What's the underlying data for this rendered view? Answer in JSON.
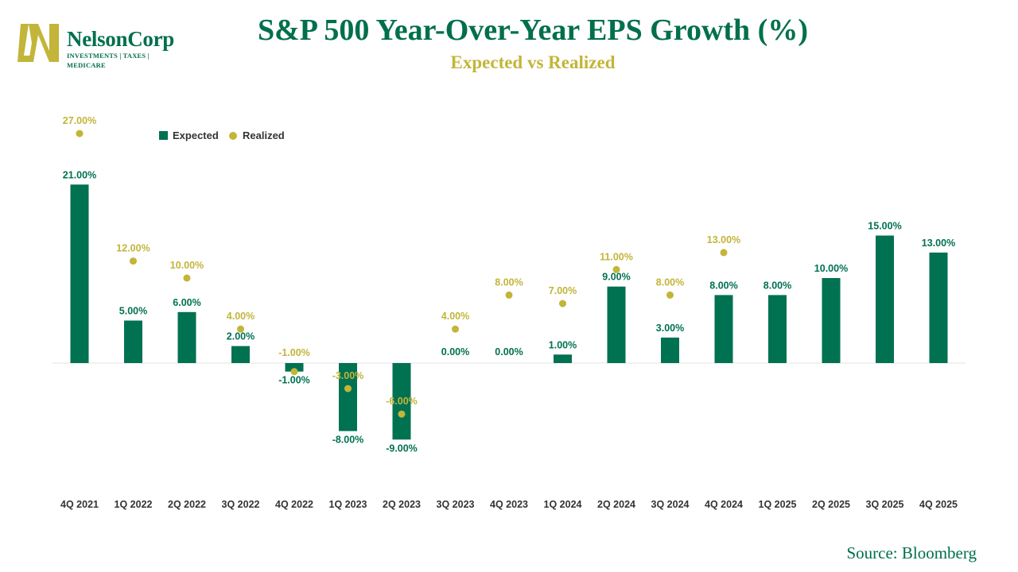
{
  "logo": {
    "name": "NelsonCorp",
    "tagline": "INVESTMENTS | TAXES | MEDICARE"
  },
  "header": {
    "title": "S&P 500 Year-Over-Year EPS Growth (%)",
    "subtitle": "Expected vs Realized"
  },
  "footer": {
    "source": "Source: Bloomberg"
  },
  "colors": {
    "expected": "#007151",
    "realized": "#c2b539",
    "brand": "#006f4d",
    "axis_label": "#333333"
  },
  "chart_data": {
    "type": "bar",
    "title": "S&P 500 Year-Over-Year EPS Growth (%)",
    "subtitle": "Expected vs Realized",
    "xlabel": "",
    "ylabel": "",
    "ylim": [
      -9,
      27
    ],
    "grid": false,
    "legend_position": "top-left",
    "categories": [
      "4Q 2021",
      "1Q 2022",
      "2Q 2022",
      "3Q 2022",
      "4Q 2022",
      "1Q 2023",
      "2Q 2023",
      "3Q 2023",
      "4Q 2023",
      "1Q 2024",
      "2Q 2024",
      "3Q 2024",
      "4Q 2024",
      "1Q 2025",
      "2Q 2025",
      "3Q 2025",
      "4Q 2025"
    ],
    "series": [
      {
        "name": "Expected",
        "mark": "bar",
        "values": [
          21,
          5,
          6,
          2,
          -1,
          -8,
          -9,
          0,
          0,
          1,
          9,
          3,
          8,
          8,
          10,
          15,
          13
        ],
        "labels": [
          "21.00%",
          "5.00%",
          "6.00%",
          "2.00%",
          "-1.00%",
          "-8.00%",
          "-9.00%",
          "0.00%",
          "0.00%",
          "1.00%",
          "9.00%",
          "3.00%",
          "8.00%",
          "8.00%",
          "10.00%",
          "15.00%",
          "13.00%"
        ]
      },
      {
        "name": "Realized",
        "mark": "dot",
        "values": [
          27,
          12,
          10,
          4,
          -1,
          -3,
          -6,
          4,
          8,
          7,
          11,
          8,
          13,
          null,
          null,
          null,
          null
        ],
        "labels": [
          "27.00%",
          "12.00%",
          "10.00%",
          "4.00%",
          "-1.00%",
          "-3.00%",
          "-6.00%",
          "4.00%",
          "8.00%",
          "7.00%",
          "11.00%",
          "8.00%",
          "13.00%",
          "",
          "",
          "",
          ""
        ]
      }
    ]
  }
}
